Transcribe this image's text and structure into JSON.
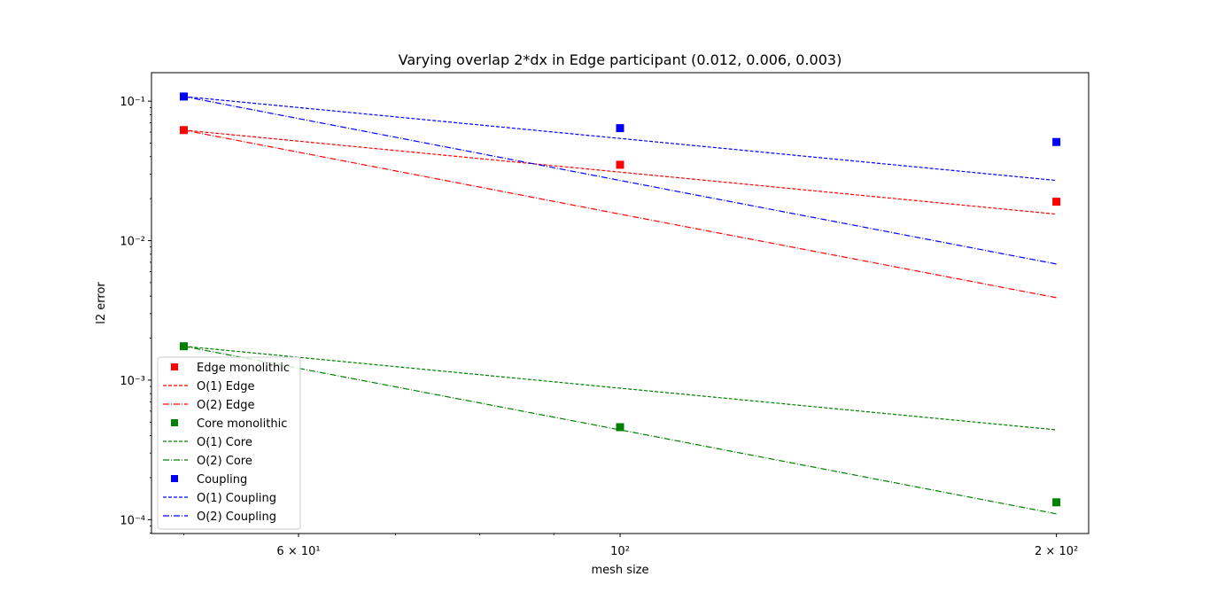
{
  "chart_data": {
    "type": "scatter",
    "title": "Varying overlap 2*dx in Edge participant (0.012, 0.006, 0.003)",
    "xlabel": "mesh size",
    "ylabel": "l2 error",
    "xscale": "log",
    "yscale": "log",
    "xlim": [
      47.5,
      210.5
    ],
    "ylim": [
      7.95e-05,
      0.16
    ],
    "x": [
      50,
      100,
      200
    ],
    "xticks_major": [
      {
        "value": 60,
        "label": "6 × 10¹"
      },
      {
        "value": 100,
        "label": "10²"
      },
      {
        "value": 200,
        "label": "2 × 10²"
      }
    ],
    "yticks_major": [
      {
        "value": 0.1,
        "label": "10⁻¹"
      },
      {
        "value": 0.01,
        "label": "10⁻²"
      },
      {
        "value": 0.001,
        "label": "10⁻³"
      },
      {
        "value": 0.0001,
        "label": "10⁻⁴"
      }
    ],
    "legend_position": "lower-left",
    "grid": false,
    "series": [
      {
        "name": "Edge monolithic",
        "kind": "marker",
        "color": "#ff0000",
        "values": [
          0.062,
          0.035,
          0.019
        ]
      },
      {
        "name": "O(1) Edge",
        "kind": "dashed",
        "color": "#ff0000",
        "values": [
          0.062,
          0.031,
          0.0155
        ]
      },
      {
        "name": "O(2) Edge",
        "kind": "dashdot",
        "color": "#ff0000",
        "values": [
          0.062,
          0.0155,
          0.0039
        ]
      },
      {
        "name": "Core monolithic",
        "kind": "marker",
        "color": "#008000",
        "values": [
          0.00175,
          0.00046,
          0.000133
        ]
      },
      {
        "name": "O(1) Core",
        "kind": "dashed",
        "color": "#008000",
        "values": [
          0.00175,
          0.000875,
          0.00044
        ]
      },
      {
        "name": "O(2) Core",
        "kind": "dashdot",
        "color": "#008000",
        "values": [
          0.00175,
          0.00044,
          0.00011
        ]
      },
      {
        "name": "Coupling",
        "kind": "marker",
        "color": "#0000ff",
        "values": [
          0.108,
          0.064,
          0.051
        ]
      },
      {
        "name": "O(1) Coupling",
        "kind": "dashed",
        "color": "#0000ff",
        "values": [
          0.108,
          0.054,
          0.027
        ]
      },
      {
        "name": "O(2) Coupling",
        "kind": "dashdot",
        "color": "#0000ff",
        "values": [
          0.108,
          0.027,
          0.0068
        ]
      }
    ]
  }
}
